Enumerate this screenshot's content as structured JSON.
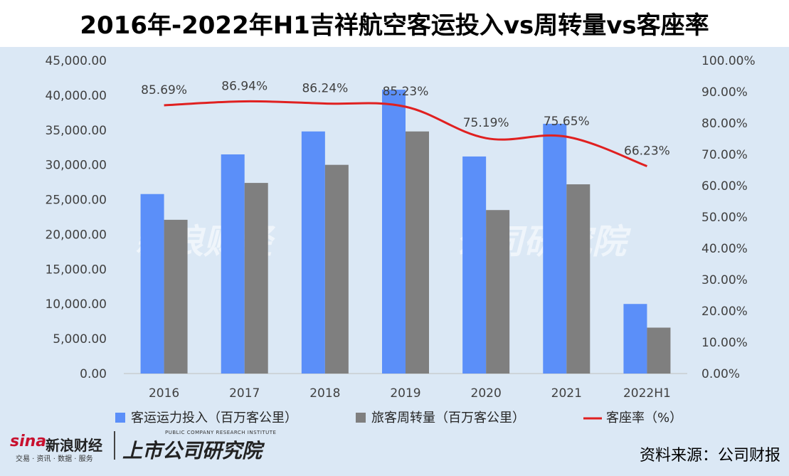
{
  "title": "2016年-2022年H1吉祥航空客运投入vs周转量vs客座率",
  "source_text": "资料来源：公司财报",
  "logos": {
    "sina_en": "sina",
    "sina_cn": "新浪财经",
    "sina_sub": "交易 · 资讯 · 数据 · 服务",
    "institute_cn": "上市公司研究院",
    "institute_en": "PUBLIC COMPANY RESEARCH INSTITUTE"
  },
  "watermarks": [
    "新浪财经",
    "公司研究院"
  ],
  "colors": {
    "capacity": "#5b8ff9",
    "turnover": "#7f7f7f",
    "load_factor": "#e02020",
    "background": "#dbe8f5"
  },
  "chart_data": {
    "type": "bar",
    "categories": [
      "2016",
      "2017",
      "2018",
      "2019",
      "2020",
      "2021",
      "2022H1"
    ],
    "series": [
      {
        "name": "客运运力投入（百万客公里）",
        "kind": "bar",
        "axis": "left",
        "values": [
          25800,
          31500,
          34800,
          40800,
          31200,
          35900,
          10000
        ]
      },
      {
        "name": "旅客周转量（百万客公里）",
        "kind": "bar",
        "axis": "left",
        "values": [
          22100,
          27400,
          30000,
          34800,
          23500,
          27200,
          6600
        ]
      },
      {
        "name": "客座率（%）",
        "kind": "line",
        "axis": "right",
        "values": [
          85.69,
          86.94,
          86.24,
          85.23,
          75.19,
          75.65,
          66.23
        ],
        "labels": [
          "85.69%",
          "86.94%",
          "86.24%",
          "85.23%",
          "75.19%",
          "75.65%",
          "66.23%"
        ]
      }
    ],
    "y_left": {
      "min": 0,
      "max": 45000,
      "step": 5000,
      "ticks": [
        "0.00",
        "5,000.00",
        "10,000.00",
        "15,000.00",
        "20,000.00",
        "25,000.00",
        "30,000.00",
        "35,000.00",
        "40,000.00",
        "45,000.00"
      ]
    },
    "y_right": {
      "min": 0,
      "max": 100,
      "step": 10,
      "ticks": [
        "0.00%",
        "10.00%",
        "20.00%",
        "30.00%",
        "40.00%",
        "50.00%",
        "60.00%",
        "70.00%",
        "80.00%",
        "90.00%",
        "100.00%"
      ]
    },
    "grid": false,
    "legend_position": "bottom"
  }
}
